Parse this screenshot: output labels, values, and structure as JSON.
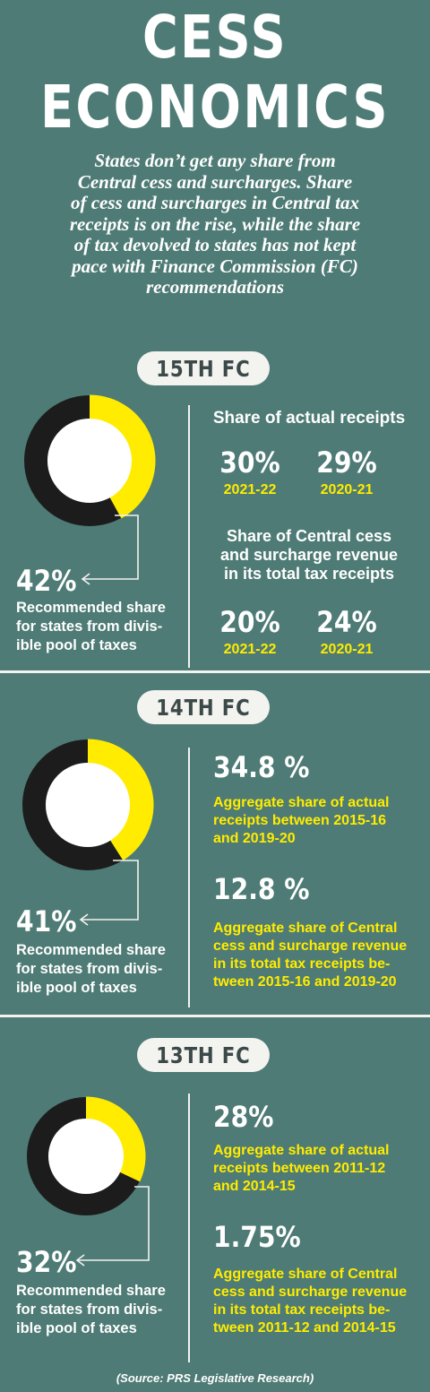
{
  "header": {
    "title_line1": "CESS",
    "title_line2": "ECONOMICS",
    "intro_lines": [
      "States don’t get any share from",
      "Central cess and surcharges. Share",
      "of cess and surcharges in Central tax",
      "receipts is on the rise, while the share",
      "of tax devolved to states has not kept",
      "pace with Finance Commission (FC)",
      "recommendations"
    ]
  },
  "colors": {
    "background": "#4e7b75",
    "accent": "#ffec00",
    "donut_dark": "#1c1c1c",
    "donut_hole": "#ffffff"
  },
  "chart_data": [
    {
      "type": "pie",
      "commission": "15TH FC",
      "recommended_share_pct": 42,
      "recommended_share_label": "42%",
      "recommended_text": [
        "Recommended share",
        "for states from divis-",
        "ible pool of taxes"
      ],
      "right": {
        "heading1": "Share of actual receipts",
        "stats1": [
          {
            "value": "30%",
            "year": "2021-22"
          },
          {
            "value": "29%",
            "year": "2020-21"
          }
        ],
        "heading2": [
          "Share of Central cess",
          "and surcharge revenue",
          "in its total tax receipts"
        ],
        "stats2": [
          {
            "value": "20%",
            "year": "2021-22"
          },
          {
            "value": "24%",
            "year": "2020-21"
          }
        ]
      }
    },
    {
      "type": "pie",
      "commission": "14TH FC",
      "recommended_share_pct": 41,
      "recommended_share_label": "41%",
      "recommended_text": [
        "Recommended share",
        "for states from divis-",
        "ible pool of taxes"
      ],
      "right": {
        "value1": "34.8 %",
        "desc1": [
          "Aggregate share of actual",
          "receipts between 2015-16",
          "and 2019-20"
        ],
        "value2": "12.8 %",
        "desc2": [
          "Aggregate share of Central",
          "cess and surcharge revenue",
          "in its total tax receipts be-",
          "tween 2015-16 and 2019-20"
        ]
      }
    },
    {
      "type": "pie",
      "commission": "13TH FC",
      "recommended_share_pct": 32,
      "recommended_share_label": "32%",
      "recommended_text": [
        "Recommended share",
        "for states from divis-",
        "ible pool of taxes"
      ],
      "right": {
        "value1": "28%",
        "desc1": [
          "Aggregate share of actual",
          "receipts between 2011-12",
          "and 2014-15"
        ],
        "value2": "1.75%",
        "desc2": [
          "Aggregate share of Central",
          "cess and surcharge revenue",
          "in its total tax receipts be-",
          "tween 2011-12 and 2014-15"
        ]
      }
    }
  ],
  "source": "(Source: PRS Legislative Research)"
}
